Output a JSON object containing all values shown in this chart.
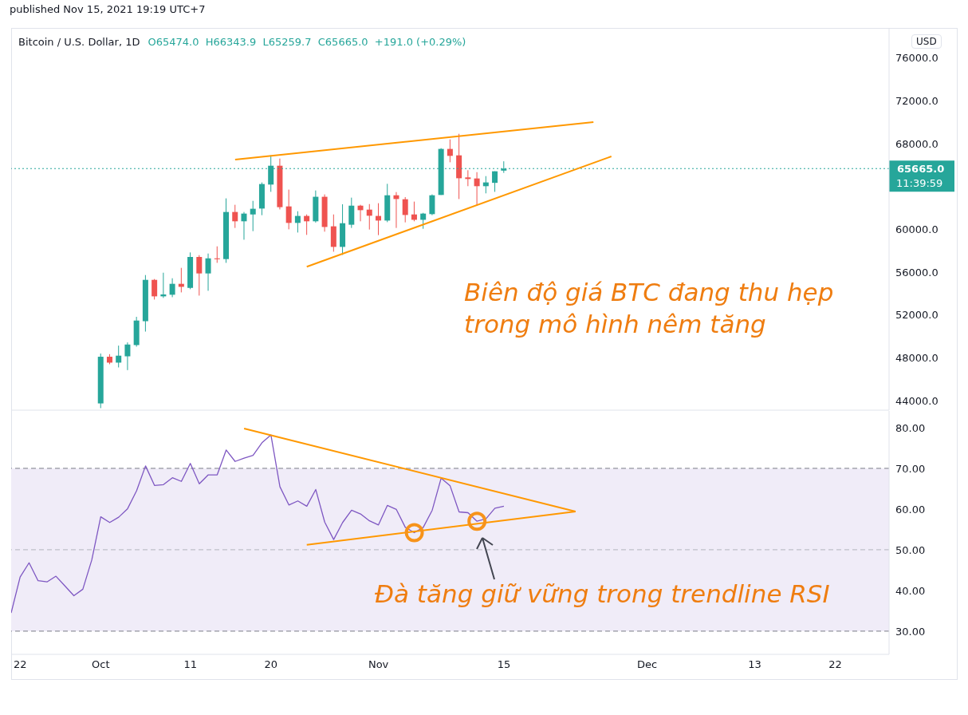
{
  "chart_data": [
    {
      "type": "candlestick",
      "title": "Bitcoin / U.S. Dollar, 1D",
      "subtitle": "O65474.0  H66343.9  L65259.7  C65665.0  +191.0 (+0.29%)",
      "annotations": [
        "published Nov 15, 2021 19:19 UTC+7",
        "USD",
        "11:39:59",
        "Biên độ giá BTC đang thu hẹp\ntrong mô hình nêm tăng"
      ],
      "x": [
        "2021-10-01",
        "2021-10-02",
        "2021-10-03",
        "2021-10-04",
        "2021-10-05",
        "2021-10-06",
        "2021-10-07",
        "2021-10-08",
        "2021-10-09",
        "2021-10-10",
        "2021-10-11",
        "2021-10-12",
        "2021-10-13",
        "2021-10-14",
        "2021-10-15",
        "2021-10-16",
        "2021-10-17",
        "2021-10-18",
        "2021-10-19",
        "2021-10-20",
        "2021-10-21",
        "2021-10-22",
        "2021-10-23",
        "2021-10-24",
        "2021-10-25",
        "2021-10-26",
        "2021-10-27",
        "2021-10-28",
        "2021-10-29",
        "2021-10-30",
        "2021-10-31",
        "2021-11-01",
        "2021-11-02",
        "2021-11-03",
        "2021-11-04",
        "2021-11-05",
        "2021-11-06",
        "2021-11-07",
        "2021-11-08",
        "2021-11-09",
        "2021-11-10",
        "2021-11-11",
        "2021-11-12",
        "2021-11-13",
        "2021-11-14",
        "2021-11-15"
      ],
      "ohlc": [
        [
          43730,
          48390,
          43290,
          48090
        ],
        [
          48090,
          48330,
          47390,
          47540
        ],
        [
          47540,
          49130,
          47090,
          48190
        ],
        [
          48130,
          49430,
          46840,
          49230
        ],
        [
          49180,
          51820,
          49030,
          51470
        ],
        [
          51410,
          55720,
          50440,
          55270
        ],
        [
          55270,
          55350,
          53430,
          53730
        ],
        [
          53730,
          55940,
          53580,
          53910
        ],
        [
          53880,
          55420,
          53650,
          54900
        ],
        [
          54900,
          56390,
          54100,
          54620
        ],
        [
          54520,
          57830,
          54400,
          57410
        ],
        [
          57410,
          57580,
          53800,
          55870
        ],
        [
          55870,
          57730,
          54250,
          57280
        ],
        [
          57280,
          58400,
          56860,
          57200
        ],
        [
          57210,
          62880,
          56860,
          61610
        ],
        [
          61610,
          62280,
          60120,
          60740
        ],
        [
          60740,
          61610,
          59020,
          61460
        ],
        [
          61380,
          62650,
          59820,
          61910
        ],
        [
          61930,
          64370,
          61310,
          64220
        ],
        [
          64170,
          66900,
          63490,
          65930
        ],
        [
          65930,
          66600,
          61850,
          62060
        ],
        [
          62130,
          63700,
          59990,
          60590
        ],
        [
          60590,
          61680,
          59690,
          61240
        ],
        [
          61240,
          61380,
          59470,
          60740
        ],
        [
          60740,
          63620,
          60620,
          63030
        ],
        [
          63030,
          63250,
          59770,
          60210
        ],
        [
          60270,
          61380,
          57900,
          58350
        ],
        [
          58350,
          62330,
          57600,
          60560
        ],
        [
          60420,
          62950,
          60120,
          62200
        ],
        [
          62200,
          62280,
          60740,
          61780
        ],
        [
          61830,
          62350,
          59970,
          61260
        ],
        [
          61240,
          62430,
          59450,
          60810
        ],
        [
          60810,
          64240,
          60660,
          63170
        ],
        [
          63170,
          63470,
          60120,
          62820
        ],
        [
          62800,
          63000,
          60640,
          61330
        ],
        [
          61380,
          62580,
          60740,
          60880
        ],
        [
          60880,
          61530,
          60040,
          61460
        ],
        [
          61410,
          63250,
          61310,
          63170
        ],
        [
          63200,
          67570,
          63200,
          67500
        ],
        [
          67500,
          68390,
          66250,
          66850
        ],
        [
          66900,
          68910,
          62820,
          64760
        ],
        [
          64840,
          65510,
          64020,
          64690
        ],
        [
          64740,
          65330,
          62200,
          64020
        ],
        [
          64020,
          64960,
          63350,
          64370
        ],
        [
          64330,
          65410,
          63490,
          65410
        ],
        [
          65474.0,
          66343.9,
          65259.7,
          65665.0
        ]
      ],
      "colors": [
        "#26a69a",
        "#ef5350",
        "#26a69a",
        "#26a69a",
        "#26a69a",
        "#26a69a",
        "#ef5350",
        "#26a69a",
        "#26a69a",
        "#ef5350",
        "#26a69a",
        "#ef5350",
        "#26a69a",
        "#ef5350",
        "#26a69a",
        "#ef5350",
        "#26a69a",
        "#26a69a",
        "#26a69a",
        "#26a69a",
        "#ef5350",
        "#ef5350",
        "#26a69a",
        "#ef5350",
        "#26a69a",
        "#ef5350",
        "#ef5350",
        "#26a69a",
        "#26a69a",
        "#ef5350",
        "#ef5350",
        "#ef5350",
        "#26a69a",
        "#ef5350",
        "#ef5350",
        "#ef5350",
        "#26a69a",
        "#26a69a",
        "#26a69a",
        "#ef5350",
        "#ef5350",
        "#ef5350",
        "#ef5350",
        "#26a69a",
        "#26a69a",
        "#26a69a"
      ],
      "series": [
        {
          "type": "line",
          "x": [
            "2021-10-16",
            "2021-11-25"
          ],
          "values": [
            66500,
            70000
          ],
          "color": "#ff9800"
        },
        {
          "type": "line",
          "x": [
            "2021-10-24",
            "2021-11-27"
          ],
          "values": [
            56500,
            66800
          ],
          "color": "#ff9800"
        }
      ],
      "xlim": [
        "2021-09-21",
        "2021-12-28"
      ],
      "ylim": [
        43100,
        78800
      ],
      "yticks": [
        {
          "value": 44000,
          "label": "44000.0"
        },
        {
          "value": 48000,
          "label": "48000.0"
        },
        {
          "value": 52000,
          "label": "52000.0"
        },
        {
          "value": 56000,
          "label": "56000.0"
        },
        {
          "value": 60000,
          "label": "60000.0"
        },
        {
          "value": 68000,
          "label": "68000.0"
        },
        {
          "value": 72000,
          "label": "72000.0"
        },
        {
          "value": 76000,
          "label": "76000.0"
        }
      ],
      "ref_lines": [
        {
          "axis": "y",
          "value": 65665.0,
          "label": "65665.0",
          "color": "#26a69a",
          "line_style": "dotted"
        }
      ],
      "tick_labels": "y"
    },
    {
      "type": "line",
      "annotations": [
        "Đà tăng giữ vững trong trendline RSI"
      ],
      "x": [
        "2021-09-21",
        "2021-09-22",
        "2021-09-23",
        "2021-09-24",
        "2021-09-25",
        "2021-09-26",
        "2021-09-27",
        "2021-09-28",
        "2021-09-29",
        "2021-09-30",
        "2021-10-01",
        "2021-10-02",
        "2021-10-03",
        "2021-10-04",
        "2021-10-05",
        "2021-10-06",
        "2021-10-07",
        "2021-10-08",
        "2021-10-09",
        "2021-10-10",
        "2021-10-11",
        "2021-10-12",
        "2021-10-13",
        "2021-10-14",
        "2021-10-15",
        "2021-10-16",
        "2021-10-17",
        "2021-10-18",
        "2021-10-19",
        "2021-10-20",
        "2021-10-21",
        "2021-10-22",
        "2021-10-23",
        "2021-10-24",
        "2021-10-25",
        "2021-10-26",
        "2021-10-27",
        "2021-10-28",
        "2021-10-29",
        "2021-10-30",
        "2021-10-31",
        "2021-11-01",
        "2021-11-02",
        "2021-11-03",
        "2021-11-04",
        "2021-11-05",
        "2021-11-06",
        "2021-11-07",
        "2021-11-08",
        "2021-11-09",
        "2021-11-10",
        "2021-11-11",
        "2021-11-12",
        "2021-11-13",
        "2021-11-14",
        "2021-11-15"
      ],
      "series": [
        {
          "values": [
            34.5,
            43.3,
            46.8,
            42.4,
            42.1,
            43.5,
            41.1,
            38.7,
            40.3,
            47.5,
            58.1,
            56.7,
            58.0,
            60.1,
            64.5,
            70.6,
            65.8,
            66.0,
            67.7,
            66.8,
            71.2,
            66.2,
            68.4,
            68.4,
            74.5,
            71.7,
            72.5,
            73.2,
            76.3,
            78.2,
            65.5,
            61.0,
            62.0,
            60.7,
            64.8,
            56.8,
            52.5,
            56.7,
            59.7,
            58.8,
            57.1,
            56.1,
            60.9,
            59.9,
            55.5,
            54.2,
            55.5,
            59.7,
            67.6,
            65.7,
            59.3,
            59.1,
            57.0,
            57.6,
            60.2,
            60.7
          ],
          "color": "#7e57c2"
        },
        {
          "x": [
            "2021-10-17",
            "2021-11-23"
          ],
          "values": [
            79.8,
            59.4
          ],
          "color": "#ff9800"
        },
        {
          "x": [
            "2021-10-24",
            "2021-11-23"
          ],
          "values": [
            51.2,
            59.4
          ],
          "color": "#ff9800"
        }
      ],
      "xlim": [
        "2021-09-21",
        "2021-12-28"
      ],
      "ylim": [
        24.3,
        84.1
      ],
      "xticks": [
        {
          "value": "2021-09-22",
          "label": "22"
        },
        {
          "value": "2021-10-01",
          "label": "Oct"
        },
        {
          "value": "2021-10-11",
          "label": "11"
        },
        {
          "value": "2021-10-20",
          "label": "20"
        },
        {
          "value": "2021-11-01",
          "label": "Nov"
        },
        {
          "value": "2021-11-15",
          "label": "15"
        },
        {
          "value": "2021-12-01",
          "label": "Dec"
        },
        {
          "value": "2021-12-13",
          "label": "13"
        },
        {
          "value": "2021-12-22",
          "label": "22"
        }
      ],
      "yticks": [
        {
          "value": 30,
          "label": "30.00"
        },
        {
          "value": 40,
          "label": "40.00"
        },
        {
          "value": 50,
          "label": "50.00"
        },
        {
          "value": 60,
          "label": "60.00"
        },
        {
          "value": 70,
          "label": "70.00"
        },
        {
          "value": 80,
          "label": "80.00"
        }
      ],
      "bands": [
        {
          "axis": "y",
          "from": 30,
          "to": 70,
          "color": "#f0ecf8"
        }
      ],
      "ref_lines": [
        {
          "axis": "y",
          "value": 70,
          "color": "#787b86",
          "line_style": "dashed"
        },
        {
          "axis": "y",
          "value": 50,
          "color": "#b2b5be",
          "line_style": "dashed"
        },
        {
          "axis": "y",
          "value": 30,
          "color": "#787b86",
          "line_style": "dashed"
        }
      ]
    }
  ]
}
